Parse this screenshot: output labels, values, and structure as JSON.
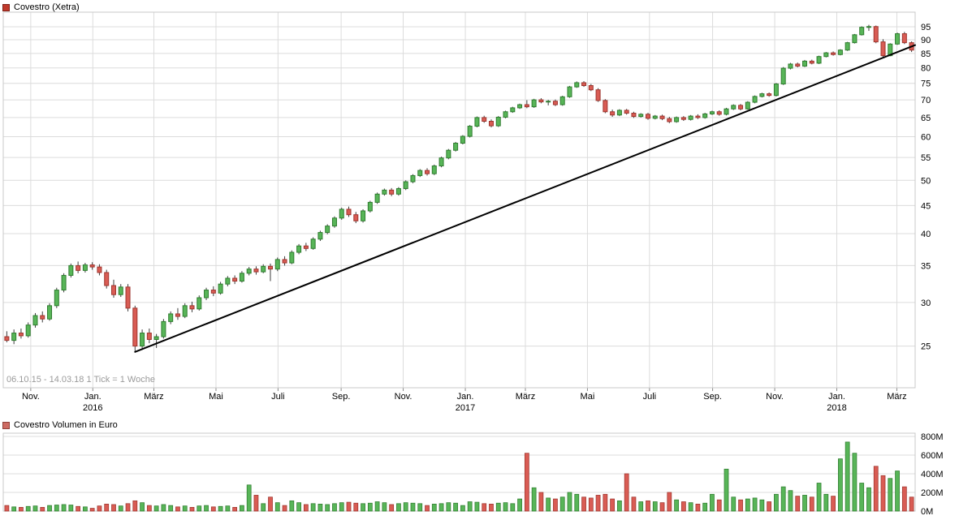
{
  "price_chart": {
    "title": "Covestro (Xetra)",
    "info_text": "06.10.15 - 14.03.18   1 Tick = 1 Woche",
    "y_axis": {
      "scale": "log",
      "side": "right",
      "ticks": [
        25,
        30,
        35,
        40,
        45,
        50,
        55,
        60,
        65,
        70,
        75,
        80,
        85,
        90,
        95
      ],
      "log_min": 21,
      "log_max": 101
    },
    "x_axis": {
      "ticks": [
        {
          "label": "Nov.",
          "week": 3.86
        },
        {
          "label": "Jan.",
          "week": 12.57,
          "year": "2016"
        },
        {
          "label": "März",
          "week": 21.14
        },
        {
          "label": "Mai",
          "week": 29.86
        },
        {
          "label": "Juli",
          "week": 38.57
        },
        {
          "label": "Sep.",
          "week": 47.43
        },
        {
          "label": "Nov.",
          "week": 56.14
        },
        {
          "label": "Jan.",
          "week": 64.86,
          "year": "2017"
        },
        {
          "label": "März",
          "week": 73.29
        },
        {
          "label": "Mai",
          "week": 82.0
        },
        {
          "label": "Juli",
          "week": 90.71
        },
        {
          "label": "Sep.",
          "week": 99.57
        },
        {
          "label": "Nov.",
          "week": 108.29
        },
        {
          "label": "Jan.",
          "week": 117.0,
          "year": "2018"
        },
        {
          "label": "März",
          "week": 125.43
        }
      ]
    },
    "trendline": {
      "from_week": 18.5,
      "from_price": 24.4,
      "to_week": 128,
      "to_price": 88.0
    }
  },
  "volume_chart": {
    "title": "Covestro Volumen in Euro",
    "y_axis": {
      "max": 800,
      "unit": "M",
      "ticks": [
        {
          "value": 0,
          "label": "0M"
        },
        {
          "value": 200,
          "label": "200M"
        },
        {
          "value": 400,
          "label": "400M"
        },
        {
          "value": 600,
          "label": "600M"
        },
        {
          "value": 800,
          "label": "800M"
        }
      ]
    }
  },
  "chart_data": {
    "type": "candlestick",
    "title": "Covestro (Xetra)",
    "period": "06.10.15 - 14.03.18",
    "tick_interval": "1 Woche",
    "price_range_visible": [
      25,
      95
    ],
    "volume_unit": "Mio. Euro",
    "ohlcv_order": [
      "open",
      "high",
      "low",
      "close",
      "volume_mio_eur"
    ],
    "candles": [
      [
        26.0,
        26.6,
        25.4,
        25.6,
        60
      ],
      [
        25.6,
        26.8,
        25.2,
        26.4,
        45
      ],
      [
        26.4,
        26.9,
        25.8,
        26.1,
        40
      ],
      [
        26.1,
        27.6,
        25.9,
        27.3,
        50
      ],
      [
        27.3,
        28.7,
        27.0,
        28.4,
        55
      ],
      [
        28.4,
        28.9,
        27.6,
        28.0,
        40
      ],
      [
        28.0,
        29.9,
        27.8,
        29.6,
        60
      ],
      [
        29.6,
        31.9,
        29.3,
        31.6,
        65
      ],
      [
        31.6,
        33.9,
        31.3,
        33.6,
        70
      ],
      [
        33.6,
        35.3,
        33.3,
        35.0,
        65
      ],
      [
        35.0,
        35.6,
        33.9,
        34.3,
        50
      ],
      [
        34.3,
        35.4,
        34.0,
        35.1,
        45
      ],
      [
        35.1,
        35.5,
        34.4,
        34.8,
        30
      ],
      [
        34.8,
        35.2,
        33.6,
        34.0,
        55
      ],
      [
        34.0,
        34.4,
        31.8,
        32.2,
        75
      ],
      [
        32.2,
        33.0,
        30.6,
        31.0,
        70
      ],
      [
        31.0,
        32.4,
        30.7,
        32.0,
        55
      ],
      [
        32.0,
        32.4,
        28.9,
        29.3,
        80
      ],
      [
        29.3,
        29.6,
        24.4,
        25.0,
        110
      ],
      [
        25.0,
        26.8,
        24.6,
        26.4,
        90
      ],
      [
        26.4,
        26.9,
        25.3,
        25.7,
        60
      ],
      [
        25.7,
        26.3,
        24.8,
        26.0,
        55
      ],
      [
        26.0,
        28.0,
        25.8,
        27.7,
        70
      ],
      [
        27.7,
        28.9,
        27.4,
        28.6,
        60
      ],
      [
        28.6,
        29.3,
        27.9,
        28.3,
        45
      ],
      [
        28.3,
        29.9,
        28.1,
        29.6,
        55
      ],
      [
        29.6,
        30.1,
        28.8,
        29.2,
        40
      ],
      [
        29.2,
        30.9,
        29.0,
        30.6,
        55
      ],
      [
        30.6,
        31.9,
        30.3,
        31.6,
        60
      ],
      [
        31.6,
        32.1,
        30.8,
        31.2,
        45
      ],
      [
        31.2,
        32.7,
        31.0,
        32.4,
        50
      ],
      [
        32.4,
        33.5,
        32.1,
        33.2,
        55
      ],
      [
        33.2,
        33.6,
        32.4,
        32.8,
        40
      ],
      [
        32.8,
        34.2,
        32.6,
        33.9,
        60
      ],
      [
        33.9,
        34.8,
        33.6,
        34.5,
        280
      ],
      [
        34.5,
        34.9,
        33.7,
        34.1,
        170
      ],
      [
        34.1,
        35.2,
        33.9,
        34.9,
        80
      ],
      [
        34.9,
        35.3,
        32.8,
        34.5,
        150
      ],
      [
        34.5,
        36.2,
        34.2,
        35.9,
        90
      ],
      [
        35.9,
        36.4,
        35.0,
        35.4,
        60
      ],
      [
        35.4,
        37.3,
        35.2,
        37.0,
        110
      ],
      [
        37.0,
        38.3,
        36.7,
        38.0,
        90
      ],
      [
        38.0,
        38.5,
        37.2,
        37.6,
        70
      ],
      [
        37.6,
        39.4,
        37.4,
        39.1,
        80
      ],
      [
        39.1,
        40.5,
        38.8,
        40.2,
        75
      ],
      [
        40.2,
        41.6,
        39.9,
        41.3,
        70
      ],
      [
        41.3,
        43.0,
        41.0,
        42.7,
        80
      ],
      [
        42.7,
        44.6,
        42.4,
        44.3,
        90
      ],
      [
        44.3,
        44.8,
        42.9,
        43.3,
        95
      ],
      [
        43.3,
        43.8,
        41.8,
        42.2,
        85
      ],
      [
        42.2,
        44.3,
        41.9,
        44.0,
        80
      ],
      [
        44.0,
        45.9,
        43.7,
        45.6,
        85
      ],
      [
        45.6,
        47.5,
        45.3,
        47.2,
        100
      ],
      [
        47.2,
        48.3,
        46.9,
        48.0,
        90
      ],
      [
        48.0,
        48.4,
        46.8,
        47.2,
        70
      ],
      [
        47.2,
        48.6,
        46.9,
        48.3,
        80
      ],
      [
        48.3,
        50.0,
        48.0,
        49.7,
        90
      ],
      [
        49.7,
        51.3,
        49.4,
        51.0,
        85
      ],
      [
        51.0,
        52.4,
        50.7,
        52.1,
        80
      ],
      [
        52.1,
        52.6,
        51.0,
        51.4,
        60
      ],
      [
        51.4,
        53.4,
        51.1,
        53.1,
        75
      ],
      [
        53.1,
        55.2,
        52.8,
        54.9,
        80
      ],
      [
        54.9,
        57.0,
        54.6,
        56.7,
        90
      ],
      [
        56.7,
        58.7,
        56.4,
        58.4,
        85
      ],
      [
        58.4,
        60.4,
        58.1,
        60.1,
        60
      ],
      [
        60.1,
        63.0,
        59.8,
        62.7,
        100
      ],
      [
        62.7,
        65.3,
        62.4,
        65.0,
        95
      ],
      [
        65.0,
        65.5,
        63.6,
        64.0,
        80
      ],
      [
        64.0,
        64.5,
        62.4,
        62.8,
        75
      ],
      [
        62.8,
        65.4,
        62.5,
        65.1,
        85
      ],
      [
        65.1,
        66.9,
        64.8,
        66.6,
        90
      ],
      [
        66.6,
        68.0,
        66.3,
        67.7,
        80
      ],
      [
        67.7,
        68.9,
        67.4,
        68.6,
        130
      ],
      [
        68.6,
        69.9,
        67.6,
        68.0,
        620
      ],
      [
        68.0,
        70.3,
        67.7,
        70.0,
        250
      ],
      [
        70.0,
        70.5,
        69.0,
        69.4,
        200
      ],
      [
        69.4,
        70.0,
        68.4,
        69.6,
        140
      ],
      [
        69.6,
        70.1,
        68.2,
        68.6,
        130
      ],
      [
        68.6,
        71.2,
        68.3,
        70.9,
        150
      ],
      [
        70.9,
        74.2,
        70.6,
        73.9,
        200
      ],
      [
        73.9,
        75.6,
        73.6,
        75.2,
        180
      ],
      [
        75.2,
        75.7,
        73.9,
        74.3,
        150
      ],
      [
        74.3,
        74.8,
        72.6,
        73.0,
        140
      ],
      [
        73.0,
        73.5,
        69.4,
        69.8,
        170
      ],
      [
        69.8,
        70.2,
        66.2,
        66.6,
        180
      ],
      [
        66.6,
        67.2,
        65.2,
        65.7,
        130
      ],
      [
        65.7,
        67.3,
        65.4,
        67.0,
        110
      ],
      [
        67.0,
        67.4,
        65.8,
        66.2,
        400
      ],
      [
        66.2,
        66.6,
        64.9,
        65.3,
        150
      ],
      [
        65.3,
        66.2,
        65.0,
        65.9,
        100
      ],
      [
        65.9,
        66.3,
        64.4,
        64.8,
        110
      ],
      [
        64.8,
        65.7,
        64.5,
        65.4,
        100
      ],
      [
        65.4,
        65.8,
        64.3,
        64.7,
        90
      ],
      [
        64.7,
        65.2,
        63.5,
        63.9,
        200
      ],
      [
        63.9,
        65.3,
        63.6,
        65.0,
        120
      ],
      [
        65.0,
        65.4,
        64.1,
        64.5,
        100
      ],
      [
        64.5,
        65.7,
        64.2,
        65.4,
        90
      ],
      [
        65.4,
        65.9,
        64.6,
        65.0,
        75
      ],
      [
        65.0,
        66.3,
        64.7,
        66.0,
        85
      ],
      [
        66.0,
        66.9,
        65.7,
        66.6,
        180
      ],
      [
        66.6,
        67.0,
        65.5,
        65.9,
        120
      ],
      [
        65.9,
        67.7,
        65.6,
        67.4,
        450
      ],
      [
        67.4,
        68.7,
        67.1,
        68.4,
        150
      ],
      [
        68.4,
        68.8,
        67.0,
        67.4,
        120
      ],
      [
        67.4,
        69.6,
        67.2,
        69.3,
        130
      ],
      [
        69.3,
        71.3,
        69.0,
        71.0,
        140
      ],
      [
        71.0,
        72.1,
        70.7,
        71.8,
        120
      ],
      [
        71.8,
        72.2,
        70.9,
        71.3,
        100
      ],
      [
        71.3,
        75.1,
        71.0,
        74.8,
        180
      ],
      [
        74.8,
        80.3,
        74.5,
        79.9,
        260
      ],
      [
        79.9,
        81.7,
        79.5,
        81.3,
        220
      ],
      [
        81.3,
        81.8,
        80.2,
        80.6,
        160
      ],
      [
        80.6,
        82.7,
        80.3,
        82.3,
        170
      ],
      [
        82.3,
        82.8,
        81.2,
        81.6,
        150
      ],
      [
        81.6,
        84.2,
        81.3,
        83.9,
        300
      ],
      [
        83.9,
        85.5,
        83.6,
        85.2,
        180
      ],
      [
        85.2,
        85.7,
        84.2,
        84.6,
        160
      ],
      [
        84.6,
        86.5,
        84.3,
        86.2,
        560
      ],
      [
        86.2,
        89.2,
        85.9,
        88.9,
        740
      ],
      [
        88.9,
        92.2,
        88.6,
        91.9,
        620
      ],
      [
        91.9,
        95.2,
        91.6,
        94.8,
        300
      ],
      [
        94.8,
        95.8,
        93.4,
        95.1,
        250
      ],
      [
        95.1,
        95.5,
        88.7,
        89.2,
        480
      ],
      [
        89.2,
        90.2,
        83.7,
        84.2,
        380
      ],
      [
        84.2,
        88.7,
        84.0,
        88.4,
        350
      ],
      [
        88.4,
        92.7,
        88.1,
        92.3,
        430
      ],
      [
        92.3,
        93.0,
        88.4,
        88.9,
        260
      ],
      [
        88.9,
        89.4,
        85.5,
        86.2,
        150
      ]
    ]
  },
  "colors": {
    "up_fill": "#58b558",
    "up_stroke": "#2f7d2f",
    "down_fill": "#d95c54",
    "down_stroke": "#9e352e",
    "wick": "#3c3c3c",
    "grid": "#dcdcdc",
    "border": "#c9c9c9",
    "tick_mark": "#8a8a8a",
    "trendline": "#000000",
    "axis_text": "#000000",
    "info_text_color": "#9b9b9b",
    "legend_price": "#c0392b",
    "legend_price_border": "#7e221a",
    "legend_volume": "#cd6b63",
    "legend_volume_border": "#8f4039"
  }
}
